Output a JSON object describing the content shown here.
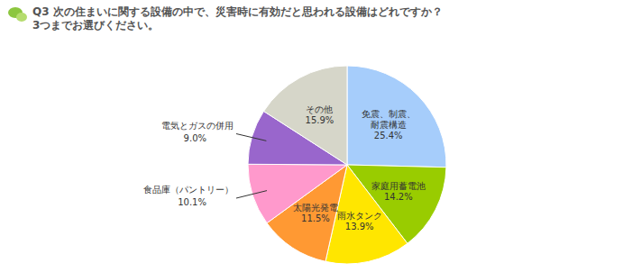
{
  "chart_data": {
    "type": "pie",
    "title": "Q3 次の住まいに関する設備の中で、災害時に有効だと思われる設備はどれですか？",
    "subtitle": "3つまでお選びください。",
    "categories": [
      "免震、制震、耐震構造",
      "家庭用蓄電池",
      "雨水タンク",
      "太陽光発電",
      "食品庫（パントリー）",
      "電気とガスの併用",
      "その他"
    ],
    "values": [
      25.4,
      14.2,
      13.9,
      11.5,
      10.1,
      9.0,
      15.9
    ],
    "value_labels": [
      "25.4%",
      "14.2%",
      "13.9%",
      "11.5%",
      "10.1%",
      "9.0%",
      "15.9%"
    ],
    "colors": [
      "#a6cdfb",
      "#99cc00",
      "#ffe600",
      "#ff9933",
      "#ff99cc",
      "#9966cc",
      "#d6d6c9"
    ],
    "data_labels": true
  }
}
